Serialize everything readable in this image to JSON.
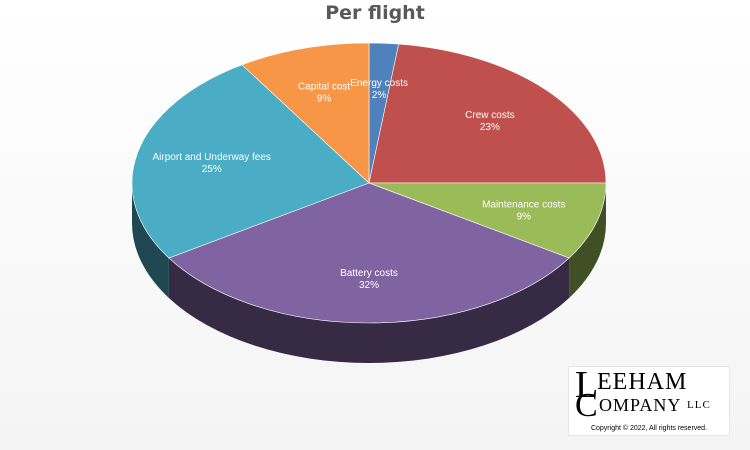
{
  "chart_data": {
    "type": "pie",
    "title": "Per flight",
    "slices": [
      {
        "name": "Energy costs",
        "value": 2,
        "color": "#4f81bd"
      },
      {
        "name": "Crew costs",
        "value": 23,
        "color": "#c0504d"
      },
      {
        "name": "Maintenance  costs",
        "value": 9,
        "color": "#9bbb59"
      },
      {
        "name": "Battery costs",
        "value": 32,
        "color": "#8064a2"
      },
      {
        "name": "Airport  and Underway fees",
        "value": 25,
        "color": "#4bacc6"
      },
      {
        "name": "Capital cost",
        "value": 9,
        "color": "#f79646"
      }
    ],
    "style": "3d-pie",
    "data_labels": "category-and-percent"
  },
  "logo": {
    "line1_initial": "L",
    "line1_rest": "EEHAM",
    "line2_initial": "C",
    "line2_rest": "OMPANY",
    "suffix": "LLC",
    "copyright": "Copyright © 2022, All rights reserved."
  }
}
